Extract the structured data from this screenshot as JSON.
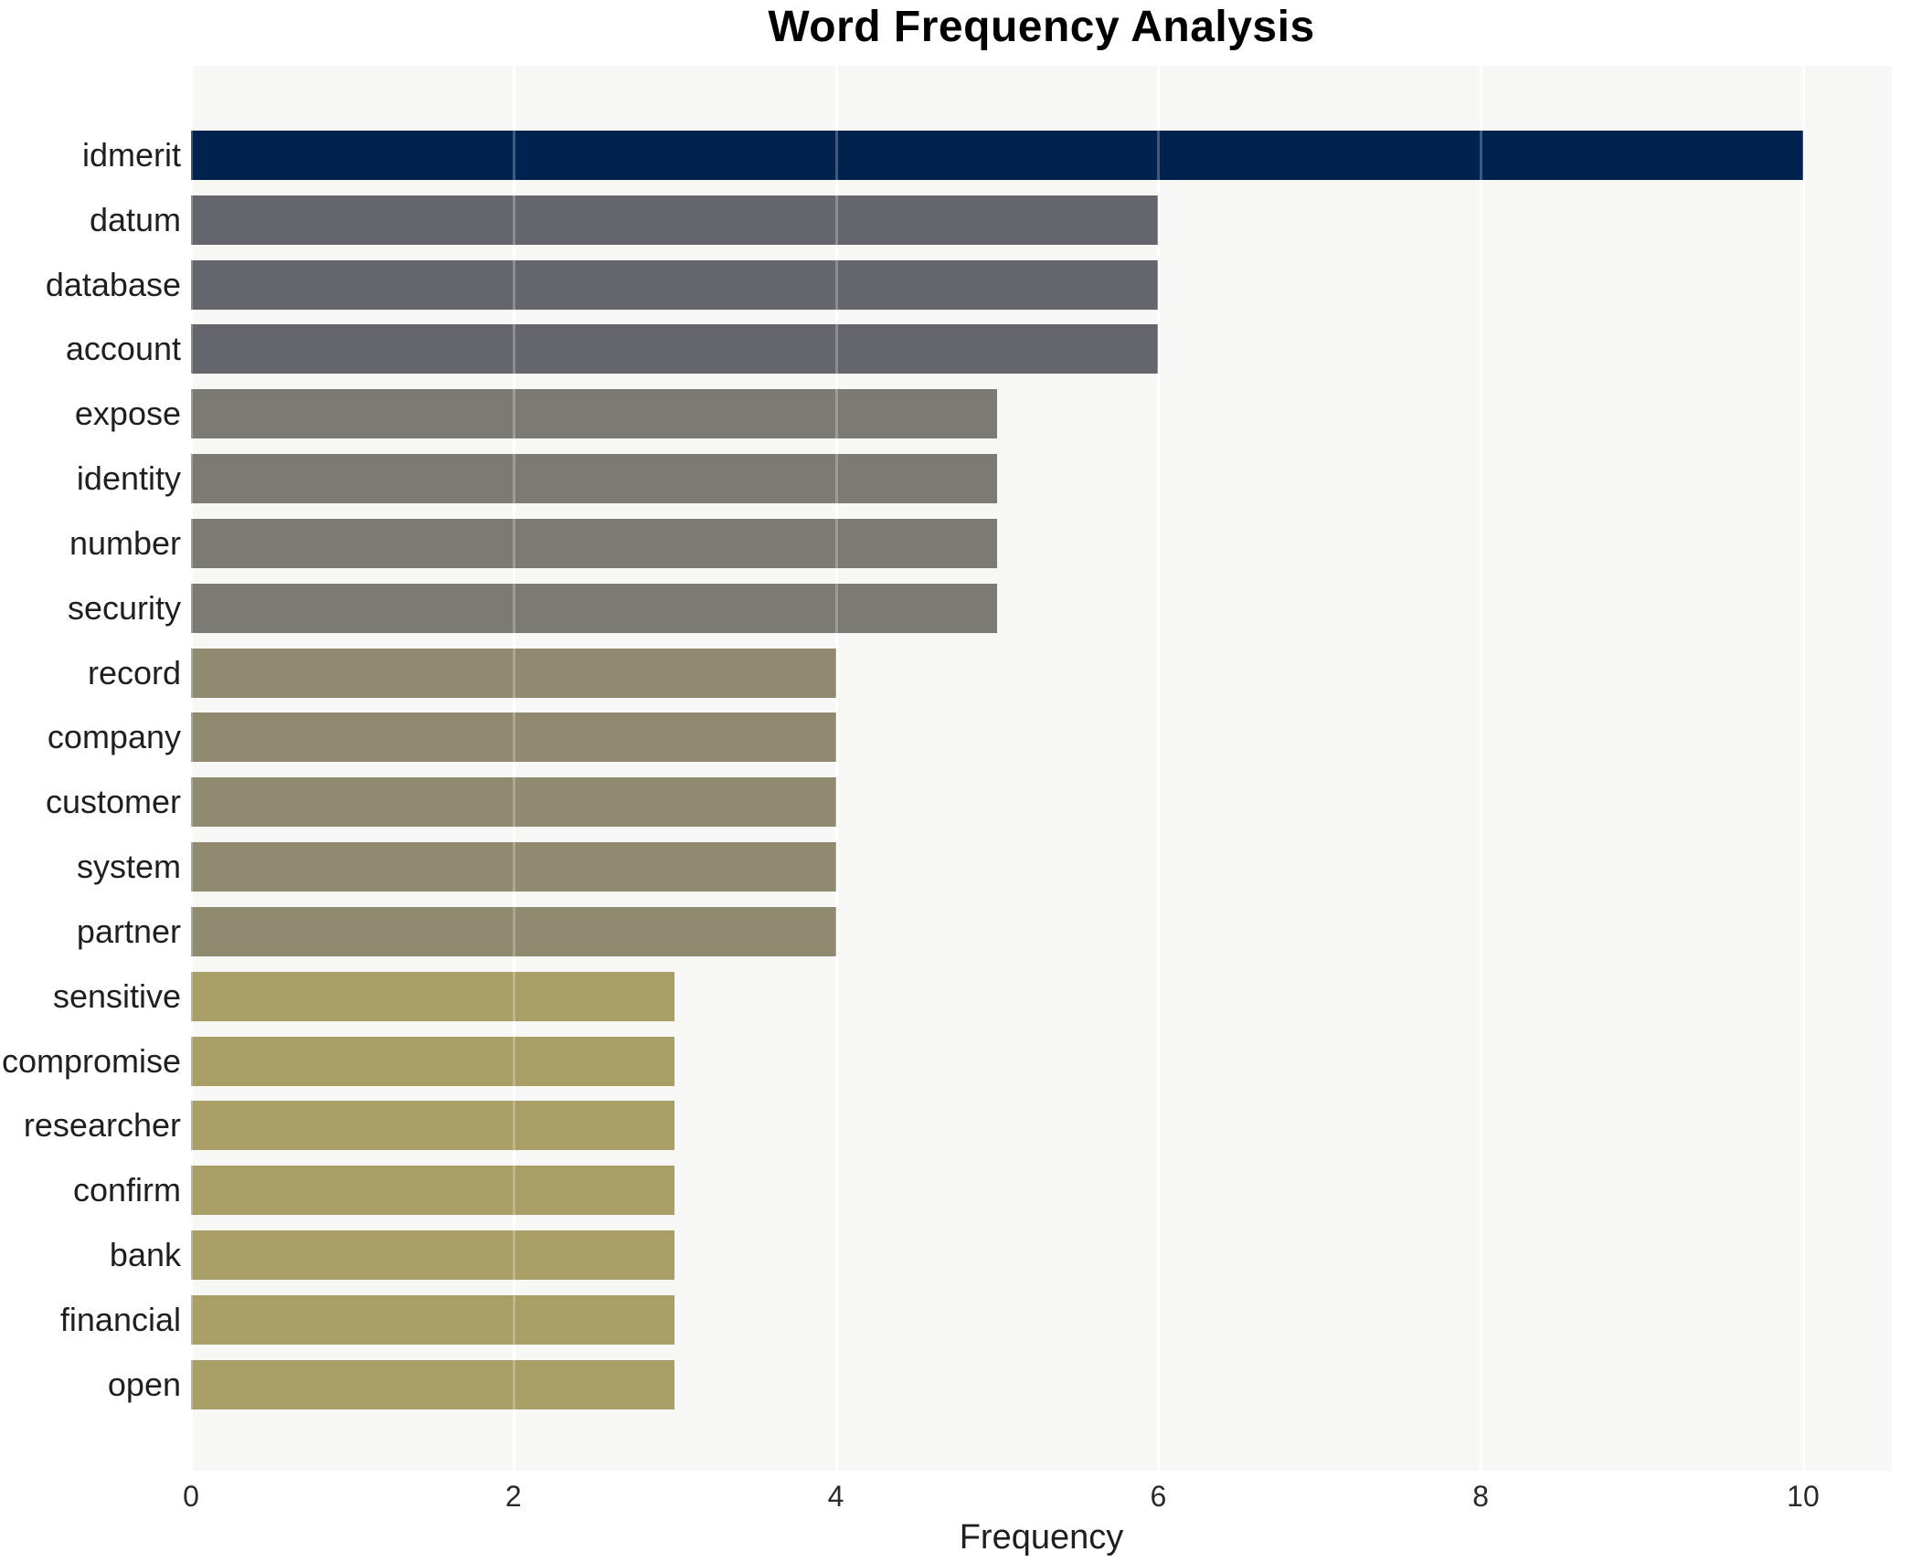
{
  "header": {
    "title": "Word Frequency Analysis"
  },
  "axes": {
    "xlabel": "Frequency"
  },
  "chart_data": {
    "type": "bar",
    "orientation": "horizontal",
    "title": "Word Frequency Analysis",
    "xlabel": "Frequency",
    "ylabel": "",
    "categories": [
      "idmerit",
      "datum",
      "database",
      "account",
      "expose",
      "identity",
      "number",
      "security",
      "record",
      "company",
      "customer",
      "system",
      "partner",
      "sensitive",
      "compromise",
      "researcher",
      "confirm",
      "bank",
      "financial",
      "open"
    ],
    "values": [
      10,
      6,
      6,
      6,
      5,
      5,
      5,
      5,
      4,
      4,
      4,
      4,
      4,
      3,
      3,
      3,
      3,
      3,
      3,
      3
    ],
    "bar_colors": [
      "#00224e",
      "#65656e",
      "#65656e",
      "#65656e",
      "#7b7a74",
      "#7b7a74",
      "#7b7a74",
      "#7b7a74",
      "#8f8a70",
      "#8f8a70",
      "#8f8a70",
      "#8f8a70",
      "#8f8a70",
      "#a99e66",
      "#a99e66",
      "#a99e66",
      "#a99e66",
      "#a99e66",
      "#a99e66",
      "#a99e66"
    ],
    "xticks": [
      0,
      2,
      4,
      6,
      8,
      10
    ],
    "xlim": [
      0,
      10.55
    ],
    "grid": true,
    "legend_position": "none",
    "plot_background": "#f7f7f5",
    "gridline_color": "#ffffff"
  }
}
